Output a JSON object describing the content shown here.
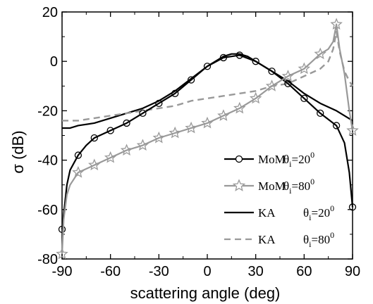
{
  "chart_data": {
    "type": "line",
    "xlabel": "scattering angle (deg)",
    "ylabel": "σ (dB)",
    "xlim": [
      -90,
      90
    ],
    "ylim": [
      -80,
      20
    ],
    "xticks": [
      -90,
      -60,
      -30,
      0,
      30,
      60,
      90
    ],
    "yticks": [
      20,
      0,
      -20,
      -40,
      -60,
      -80
    ],
    "xtick_labels": [
      "-90",
      "-60",
      "-30",
      "0",
      "30",
      "60",
      "90"
    ],
    "ytick_labels": [
      "20",
      "0",
      "-20",
      "-40",
      "-60",
      "-80"
    ],
    "legend_position": "bottom-right",
    "series": [
      {
        "name": "MoM",
        "label_theta": "θ",
        "label_sub": "i",
        "label_value": "=20",
        "label_sup": "0",
        "color": "#000000",
        "style": "solid-circle",
        "x": [
          -90,
          -89,
          -87,
          -85,
          -80,
          -75,
          -70,
          -60,
          -50,
          -40,
          -30,
          -20,
          -10,
          0,
          10,
          20,
          30,
          40,
          50,
          60,
          70,
          80,
          85,
          88,
          90
        ],
        "y": [
          -68,
          -62,
          -50,
          -44,
          -38,
          -34,
          -31,
          -28,
          -25,
          -21,
          -17,
          -13,
          -7.5,
          -2,
          1.5,
          2.5,
          0,
          -4,
          -9,
          -15,
          -21,
          -26,
          -33,
          -45,
          -59
        ],
        "marker_x": [
          -90,
          -80,
          -70,
          -60,
          -50,
          -40,
          -30,
          -20,
          -10,
          0,
          10,
          20,
          30,
          40,
          50,
          60,
          70,
          80,
          90
        ],
        "marker_y": [
          -68,
          -38,
          -31,
          -28,
          -25,
          -21,
          -17,
          -13,
          -7.5,
          -2,
          1.5,
          2.5,
          0,
          -4,
          -9,
          -15,
          -21,
          -26,
          -59
        ]
      },
      {
        "name": "MoM",
        "label_theta": "θ",
        "label_sub": "i",
        "label_value": "=80",
        "label_sup": "0",
        "color": "#999999",
        "style": "solid-star",
        "x": [
          -90,
          -89,
          -87,
          -85,
          -80,
          -70,
          -60,
          -50,
          -40,
          -30,
          -20,
          -10,
          0,
          10,
          20,
          30,
          40,
          50,
          60,
          65,
          70,
          75,
          78,
          80,
          82,
          85,
          88,
          90
        ],
        "y": [
          -78,
          -64,
          -54,
          -50,
          -45,
          -42,
          -39,
          -36,
          -34,
          -31,
          -29,
          -27,
          -25,
          -22,
          -19,
          -15,
          -10,
          -6,
          -3,
          0,
          3,
          5,
          8,
          15,
          5,
          -5,
          -20,
          -28
        ],
        "marker_x": [
          -90,
          -80,
          -70,
          -60,
          -50,
          -40,
          -30,
          -20,
          -10,
          0,
          10,
          20,
          30,
          40,
          50,
          60,
          70,
          80,
          90
        ],
        "marker_y": [
          -78,
          -45,
          -42,
          -39,
          -36,
          -34,
          -31,
          -29,
          -27,
          -25,
          -22,
          -19,
          -15,
          -10,
          -6,
          -3,
          3,
          15,
          -28
        ]
      },
      {
        "name": "KA",
        "label_theta": "θ",
        "label_sub": "i",
        "label_value": "=20",
        "label_sup": "0",
        "color": "#000000",
        "style": "solid",
        "x": [
          -90,
          -85,
          -80,
          -70,
          -60,
          -50,
          -40,
          -30,
          -20,
          -10,
          0,
          10,
          15,
          20,
          25,
          30,
          40,
          50,
          60,
          70,
          80,
          85,
          90
        ],
        "y": [
          -27,
          -27,
          -26,
          -25,
          -23,
          -21,
          -19,
          -16,
          -12,
          -7,
          -2,
          2,
          3,
          3,
          2,
          0,
          -4,
          -8,
          -13,
          -17,
          -20,
          -22,
          -24
        ]
      },
      {
        "name": "KA",
        "label_theta": "θ",
        "label_sub": "i",
        "label_value": "=80",
        "label_sup": "0",
        "color": "#999999",
        "style": "dashed",
        "x": [
          -90,
          -85,
          -80,
          -70,
          -60,
          -50,
          -40,
          -30,
          -20,
          -10,
          0,
          10,
          20,
          30,
          40,
          50,
          60,
          70,
          75,
          78,
          80,
          82,
          85,
          88,
          90
        ],
        "y": [
          -24,
          -24,
          -24,
          -23,
          -22,
          -21,
          -20,
          -19,
          -18,
          -16,
          -15,
          -14,
          -13,
          -12,
          -10,
          -9,
          -6,
          -3,
          0,
          5,
          12,
          4,
          -4,
          -8,
          -10
        ]
      }
    ]
  }
}
